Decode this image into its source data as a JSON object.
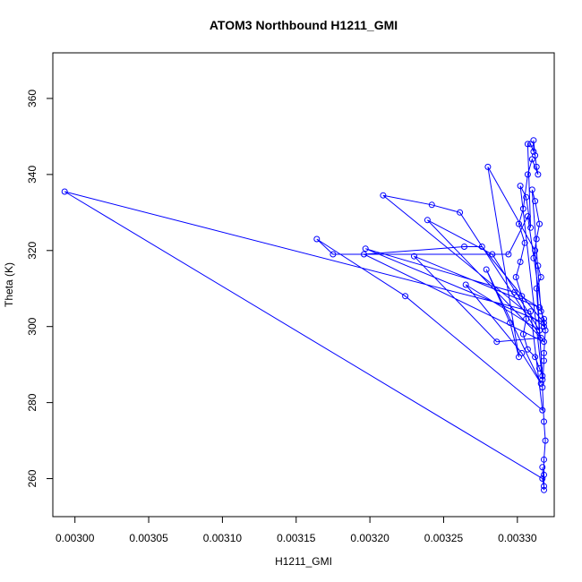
{
  "chart_data": {
    "type": "scatter",
    "title": "ATOM3 Northbound H1211_GMI",
    "xlabel": "H1211_GMI",
    "ylabel": "Theta (K)",
    "xlim": [
      0.002985,
      0.003325
    ],
    "ylim": [
      250,
      372
    ],
    "xticks": [
      "0.00300",
      "0.00305",
      "0.00310",
      "0.00315",
      "0.00320",
      "0.00325",
      "0.00330"
    ],
    "yticks": [
      "260",
      "280",
      "300",
      "320",
      "340",
      "360"
    ],
    "series_color": "#0000ff",
    "points": [
      [
        0.003317,
        263
      ],
      [
        0.003318,
        258
      ],
      [
        0.003317,
        260
      ],
      [
        0.002993,
        335.5
      ],
      [
        0.003309,
        304
      ],
      [
        0.003317,
        278
      ],
      [
        0.003224,
        308
      ],
      [
        0.003164,
        323
      ],
      [
        0.003175,
        319
      ],
      [
        0.003294,
        319
      ],
      [
        0.003307,
        329
      ],
      [
        0.003318,
        300
      ],
      [
        0.003209,
        334.5
      ],
      [
        0.003242,
        332
      ],
      [
        0.003261,
        330
      ],
      [
        0.003318,
        296
      ],
      [
        0.003196,
        319
      ],
      [
        0.003264,
        321
      ],
      [
        0.003276,
        321
      ],
      [
        0.003318,
        301
      ],
      [
        0.003197,
        320.5
      ],
      [
        0.003298,
        309
      ],
      [
        0.003315,
        305
      ],
      [
        0.00323,
        318.5
      ],
      [
        0.003286,
        296
      ],
      [
        0.003316,
        297
      ],
      [
        0.003239,
        328
      ],
      [
        0.003283,
        319
      ],
      [
        0.003315,
        299
      ],
      [
        0.003265,
        311
      ],
      [
        0.003303,
        293
      ],
      [
        0.003316,
        285
      ],
      [
        0.003279,
        315
      ],
      [
        0.003295,
        301
      ],
      [
        0.003301,
        292
      ],
      [
        0.00328,
        342
      ],
      [
        0.003312,
        320
      ],
      [
        0.003317,
        286
      ],
      [
        0.003302,
        337
      ],
      [
        0.003306,
        334
      ],
      [
        0.003309,
        326
      ],
      [
        0.003307,
        348
      ],
      [
        0.003309,
        348
      ],
      [
        0.003311,
        346
      ],
      [
        0.003311,
        349
      ],
      [
        0.003312,
        345
      ],
      [
        0.003313,
        342
      ],
      [
        0.003314,
        340
      ],
      [
        0.00331,
        344
      ],
      [
        0.003307,
        340
      ],
      [
        0.003304,
        331
      ],
      [
        0.003301,
        327
      ],
      [
        0.003305,
        322
      ],
      [
        0.003302,
        317
      ],
      [
        0.003299,
        313
      ],
      [
        0.003303,
        308
      ],
      [
        0.003306,
        302
      ],
      [
        0.003304,
        298
      ],
      [
        0.003307,
        294
      ],
      [
        0.003312,
        292
      ],
      [
        0.003315,
        289
      ],
      [
        0.003317,
        287
      ],
      [
        0.003313,
        310
      ],
      [
        0.003316,
        313
      ],
      [
        0.003314,
        316
      ],
      [
        0.003311,
        318
      ],
      [
        0.003313,
        323
      ],
      [
        0.003315,
        327
      ],
      [
        0.003312,
        333
      ],
      [
        0.00331,
        336
      ],
      [
        0.003316,
        304
      ],
      [
        0.003318,
        302
      ],
      [
        0.003319,
        299
      ],
      [
        0.003318,
        293
      ],
      [
        0.003318,
        291
      ],
      [
        0.003317,
        284
      ],
      [
        0.003318,
        275
      ],
      [
        0.003319,
        270
      ],
      [
        0.003318,
        265
      ],
      [
        0.003318,
        261
      ],
      [
        0.003318,
        257
      ]
    ]
  }
}
